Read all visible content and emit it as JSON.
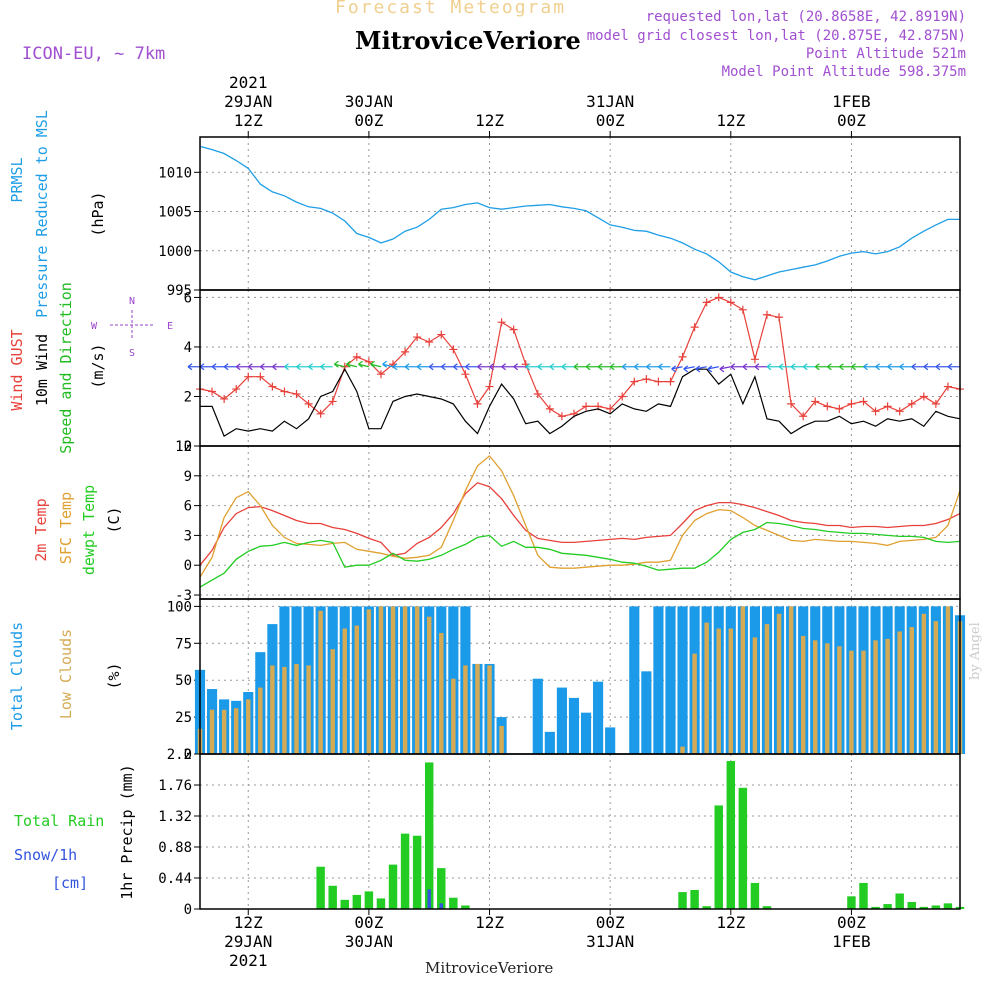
{
  "header": {
    "subtitle": "Forecast Meteogram",
    "title": "MitroviceVeriore",
    "model": "ICON-EU, ~ 7km",
    "requested": "requested lon,lat (20.8658E, 42.8919N)",
    "closest": "model grid closest lon,lat (20.875E, 42.875N)",
    "point_alt": "Point Altitude 521m",
    "model_alt": "Model Point Altitude 598.375m"
  },
  "footer": {
    "station": "MitroviceVeriore",
    "credit": "by Angel"
  },
  "colors": {
    "pressure": "#1f9ee6",
    "gust": "#e8403a",
    "wind": "#000000",
    "dir": "#22bb22",
    "temp": "#e8403a",
    "sfc": "#e0a030",
    "dewpt": "#22cc22",
    "total_clouds": "#1a9ae8",
    "low_clouds": "#d4aa55",
    "rain": "#22cc22",
    "snow": "#3355dd",
    "compass": "#9944cc"
  },
  "time_axis": {
    "start_hour": 0,
    "end_hour": 63,
    "ticks": [
      {
        "hour": 4,
        "top": [
          "2021",
          "29JAN",
          "12Z"
        ],
        "bottom": [
          "12Z",
          "29JAN",
          "2021"
        ]
      },
      {
        "hour": 14,
        "top": [
          "30JAN",
          "00Z"
        ],
        "bottom": [
          "00Z",
          "30JAN"
        ]
      },
      {
        "hour": 24,
        "top": [
          "12Z"
        ],
        "bottom": [
          "12Z"
        ]
      },
      {
        "hour": 34,
        "top": [
          "31JAN",
          "00Z"
        ],
        "bottom": [
          "00Z",
          "31JAN"
        ]
      },
      {
        "hour": 44,
        "top": [
          "12Z"
        ],
        "bottom": [
          "12Z"
        ]
      },
      {
        "hour": 54,
        "top": [
          "1FEB",
          "00Z"
        ],
        "bottom": [
          "00Z",
          "1FEB"
        ]
      }
    ]
  },
  "panels": {
    "pressure": {
      "labels": [
        "PRMSL",
        "Pressure Reduced to MSL",
        "(hPa)"
      ],
      "yticks": [
        995,
        1000,
        1005,
        1010
      ],
      "ylim": [
        995,
        1014.5
      ]
    },
    "wind": {
      "labels": [
        "Wind GUST",
        "10m Wind",
        "Speed and Direction",
        "(m/s)"
      ],
      "yticks": [
        0,
        2,
        4,
        6
      ],
      "ylim": [
        0,
        6.3
      ],
      "compass": [
        "N",
        "E",
        "S",
        "W"
      ]
    },
    "temp": {
      "labels": [
        "2m Temp",
        "SFC Temp",
        "dewpt Temp",
        "(C)"
      ],
      "yticks": [
        -3,
        0,
        3,
        6,
        9,
        12
      ],
      "ylim": [
        -3.4,
        12
      ]
    },
    "clouds": {
      "labels": [
        "Total Clouds",
        "Low Clouds",
        "(%)"
      ],
      "yticks": [
        0,
        25,
        50,
        75,
        100
      ],
      "ylim": [
        0,
        105
      ]
    },
    "precip": {
      "labels": [
        "Total Rain",
        "Snow/1h",
        "[cm]",
        "1hr Precip (mm)"
      ],
      "yticks": [
        0,
        0.44,
        0.88,
        1.32,
        1.76,
        2.2
      ],
      "ylim": [
        0,
        2.2
      ]
    }
  },
  "chart_data": [
    {
      "type": "line",
      "title": "PRMSL",
      "ylabel": "Pressure Reduced to MSL (hPa)",
      "x": [
        0,
        1,
        2,
        3,
        4,
        5,
        6,
        7,
        8,
        9,
        10,
        11,
        12,
        13,
        14,
        15,
        16,
        17,
        18,
        19,
        20,
        21,
        22,
        23,
        24,
        25,
        26,
        27,
        28,
        29,
        30,
        31,
        32,
        33,
        34,
        35,
        36,
        37,
        38,
        39,
        40,
        41,
        42,
        43,
        44,
        45,
        46,
        47,
        48,
        49,
        50,
        51,
        52,
        53,
        54,
        55,
        56,
        57,
        58,
        59,
        60,
        61,
        62,
        63
      ],
      "series": [
        {
          "name": "PRMSL",
          "values": [
            1013.3,
            1012.9,
            1012.4,
            1011.5,
            1010.5,
            1008.5,
            1007.5,
            1007.0,
            1006.2,
            1005.6,
            1005.4,
            1004.8,
            1003.8,
            1002.2,
            1001.7,
            1001.0,
            1001.5,
            1002.5,
            1003.0,
            1004.0,
            1005.3,
            1005.5,
            1005.9,
            1006.1,
            1005.5,
            1005.3,
            1005.5,
            1005.7,
            1005.8,
            1005.9,
            1005.6,
            1005.4,
            1005.1,
            1004.2,
            1003.3,
            1003.0,
            1002.6,
            1002.5,
            1002.0,
            1001.6,
            1001.0,
            1000.2,
            999.6,
            998.6,
            997.3,
            996.7,
            996.3,
            996.8,
            997.3,
            997.6,
            997.9,
            998.2,
            998.7,
            999.3,
            999.7,
            999.9,
            999.6,
            999.9,
            1000.5,
            1001.6,
            1002.5,
            1003.3,
            1004.0,
            1004.0
          ]
        }
      ],
      "ylim": [
        995,
        1014.5
      ]
    },
    {
      "type": "line",
      "title": "Wind GUST / 10m Wind Speed and Direction",
      "ylabel": "(m/s)",
      "x": [
        0,
        1,
        2,
        3,
        4,
        5,
        6,
        7,
        8,
        9,
        10,
        11,
        12,
        13,
        14,
        15,
        16,
        17,
        18,
        19,
        20,
        21,
        22,
        23,
        24,
        25,
        26,
        27,
        28,
        29,
        30,
        31,
        32,
        33,
        34,
        35,
        36,
        37,
        38,
        39,
        40,
        41,
        42,
        43,
        44,
        45,
        46,
        47,
        48,
        49,
        50,
        51,
        52,
        53,
        54,
        55,
        56,
        57,
        58,
        59,
        60,
        61,
        62,
        63
      ],
      "series": [
        {
          "name": "Wind GUST",
          "values": [
            2.3,
            2.2,
            1.9,
            2.3,
            2.8,
            2.8,
            2.4,
            2.2,
            2.1,
            1.7,
            1.3,
            1.8,
            3.2,
            3.6,
            3.4,
            2.9,
            3.3,
            3.8,
            4.4,
            4.2,
            4.5,
            3.9,
            2.9,
            1.7,
            2.4,
            5.0,
            4.7,
            3.3,
            2.1,
            1.5,
            1.2,
            1.3,
            1.6,
            1.6,
            1.5,
            2.0,
            2.6,
            2.7,
            2.6,
            2.6,
            3.6,
            4.8,
            5.8,
            6.0,
            5.8,
            5.5,
            3.5,
            5.3,
            5.2,
            1.7,
            1.2,
            1.8,
            1.6,
            1.5,
            1.7,
            1.8,
            1.4,
            1.6,
            1.4,
            1.7,
            2.0,
            1.7,
            2.4,
            2.3
          ]
        },
        {
          "name": "10m Wind",
          "values": [
            1.6,
            1.6,
            0.4,
            0.7,
            0.6,
            0.7,
            0.6,
            1.0,
            0.7,
            1.1,
            2.0,
            2.2,
            3.1,
            2.2,
            0.7,
            0.7,
            1.8,
            2.0,
            2.1,
            2.0,
            1.9,
            1.7,
            1.0,
            0.5,
            1.6,
            2.5,
            1.9,
            0.9,
            1.0,
            0.5,
            0.8,
            1.2,
            1.4,
            1.5,
            1.3,
            1.7,
            1.5,
            1.4,
            1.7,
            1.6,
            2.8,
            3.1,
            3.1,
            2.5,
            2.9,
            1.7,
            2.8,
            1.1,
            1.0,
            0.5,
            0.8,
            1.0,
            1.0,
            1.2,
            0.9,
            1.0,
            0.8,
            1.1,
            1.0,
            1.1,
            0.8,
            1.4,
            1.2,
            1.1
          ]
        }
      ],
      "ylim": [
        0,
        6.3
      ]
    },
    {
      "type": "line",
      "title": "Temperatures",
      "ylabel": "(C)",
      "x": [
        0,
        1,
        2,
        3,
        4,
        5,
        6,
        7,
        8,
        9,
        10,
        11,
        12,
        13,
        14,
        15,
        16,
        17,
        18,
        19,
        20,
        21,
        22,
        23,
        24,
        25,
        26,
        27,
        28,
        29,
        30,
        31,
        32,
        33,
        34,
        35,
        36,
        37,
        38,
        39,
        40,
        41,
        42,
        43,
        44,
        45,
        46,
        47,
        48,
        49,
        50,
        51,
        52,
        53,
        54,
        55,
        56,
        57,
        58,
        59,
        60,
        61,
        62,
        63
      ],
      "series": [
        {
          "name": "2m Temp",
          "values": [
            0.0,
            1.5,
            3.8,
            5.2,
            5.8,
            5.9,
            5.5,
            5.0,
            4.5,
            4.2,
            4.2,
            3.8,
            3.6,
            3.2,
            2.7,
            2.3,
            1.0,
            1.2,
            2.2,
            2.8,
            3.8,
            5.2,
            7.2,
            8.3,
            7.9,
            6.7,
            5.0,
            3.5,
            2.7,
            2.5,
            2.3,
            2.3,
            2.4,
            2.5,
            2.6,
            2.7,
            2.6,
            2.8,
            2.9,
            3.0,
            4.2,
            5.5,
            6.0,
            6.3,
            6.3,
            6.1,
            5.8,
            5.4,
            5.0,
            4.5,
            4.3,
            4.2,
            4.0,
            4.0,
            3.8,
            3.9,
            3.9,
            3.8,
            3.9,
            4.0,
            4.0,
            4.2,
            4.6,
            5.2
          ]
        },
        {
          "name": "SFC Temp",
          "values": [
            -1.2,
            0.8,
            4.8,
            6.8,
            7.4,
            6.0,
            4.0,
            2.8,
            2.2,
            2.1,
            2.0,
            2.2,
            2.3,
            1.6,
            1.4,
            1.2,
            0.9,
            0.7,
            0.8,
            1.0,
            1.8,
            4.5,
            7.5,
            10.0,
            11.0,
            9.5,
            7.0,
            4.0,
            1.0,
            -0.2,
            -0.3,
            -0.3,
            -0.2,
            -0.1,
            0.0,
            0.0,
            0.1,
            0.3,
            0.3,
            0.5,
            3.0,
            4.5,
            5.2,
            5.6,
            5.5,
            4.8,
            4.0,
            3.5,
            3.0,
            2.5,
            2.4,
            2.6,
            2.5,
            2.4,
            2.4,
            2.3,
            2.2,
            2.0,
            2.4,
            2.5,
            2.6,
            2.8,
            4.0,
            7.5
          ]
        },
        {
          "name": "dewpt Temp",
          "values": [
            -2.2,
            -1.5,
            -0.8,
            0.6,
            1.4,
            1.9,
            2.0,
            2.3,
            2.0,
            2.3,
            2.5,
            2.3,
            -0.2,
            0.0,
            0.0,
            0.5,
            1.2,
            0.5,
            0.4,
            0.6,
            1.0,
            1.6,
            2.1,
            2.8,
            3.0,
            1.9,
            2.4,
            1.8,
            1.8,
            1.6,
            1.2,
            1.1,
            1.0,
            0.8,
            0.6,
            0.3,
            0.2,
            -0.1,
            -0.5,
            -0.4,
            -0.3,
            -0.3,
            0.3,
            1.3,
            2.6,
            3.3,
            3.6,
            4.3,
            4.2,
            4.0,
            3.7,
            3.6,
            3.4,
            3.3,
            3.2,
            3.2,
            3.1,
            3.0,
            2.9,
            2.9,
            2.8,
            2.4,
            2.3,
            2.4
          ]
        }
      ],
      "ylim": [
        -3.4,
        12
      ]
    },
    {
      "type": "bar",
      "title": "Clouds",
      "ylabel": "(%)",
      "x": [
        0,
        1,
        2,
        3,
        4,
        5,
        6,
        7,
        8,
        9,
        10,
        11,
        12,
        13,
        14,
        15,
        16,
        17,
        18,
        19,
        20,
        21,
        22,
        23,
        24,
        25,
        26,
        27,
        28,
        29,
        30,
        31,
        32,
        33,
        34,
        35,
        36,
        37,
        38,
        39,
        40,
        41,
        42,
        43,
        44,
        45,
        46,
        47,
        48,
        49,
        50,
        51,
        52,
        53,
        54,
        55,
        56,
        57,
        58,
        59,
        60,
        61,
        62,
        63
      ],
      "series": [
        {
          "name": "Total Clouds",
          "values": [
            57,
            44,
            37,
            36,
            42,
            69,
            88,
            100,
            100,
            100,
            100,
            100,
            100,
            100,
            100,
            100,
            100,
            100,
            100,
            100,
            100,
            100,
            100,
            61,
            61,
            25,
            0,
            0,
            51,
            15,
            45,
            38,
            28,
            49,
            18,
            0,
            100,
            56,
            100,
            100,
            100,
            100,
            100,
            100,
            100,
            100,
            100,
            100,
            100,
            100,
            100,
            100,
            100,
            100,
            100,
            100,
            100,
            100,
            100,
            100,
            100,
            100,
            100,
            94
          ]
        },
        {
          "name": "Low Clouds",
          "values": [
            17,
            30,
            30,
            31,
            37,
            45,
            60,
            59,
            61,
            60,
            97,
            71,
            85,
            87,
            98,
            100,
            100,
            100,
            100,
            93,
            82,
            51,
            60,
            61,
            60,
            19,
            0,
            0,
            0,
            0,
            0,
            0,
            0,
            0,
            0,
            0,
            0,
            0,
            0,
            0,
            5,
            68,
            89,
            85,
            85,
            100,
            79,
            88,
            95,
            100,
            80,
            77,
            75,
            73,
            70,
            70,
            77,
            78,
            83,
            86,
            95,
            90,
            100,
            90
          ]
        }
      ],
      "ylim": [
        0,
        105
      ]
    },
    {
      "type": "bar",
      "title": "Precipitation",
      "ylabel": "1hr Precip (mm)",
      "x": [
        0,
        1,
        2,
        3,
        4,
        5,
        6,
        7,
        8,
        9,
        10,
        11,
        12,
        13,
        14,
        15,
        16,
        17,
        18,
        19,
        20,
        21,
        22,
        23,
        24,
        25,
        26,
        27,
        28,
        29,
        30,
        31,
        32,
        33,
        34,
        35,
        36,
        37,
        38,
        39,
        40,
        41,
        42,
        43,
        44,
        45,
        46,
        47,
        48,
        49,
        50,
        51,
        52,
        53,
        54,
        55,
        56,
        57,
        58,
        59,
        60,
        61,
        62,
        63
      ],
      "series": [
        {
          "name": "Total Rain",
          "values": [
            0,
            0,
            0,
            0,
            0,
            0,
            0,
            0,
            0,
            0,
            0.6,
            0.33,
            0.13,
            0.2,
            0.25,
            0.15,
            0.63,
            1.07,
            1.04,
            2.08,
            0.58,
            0.16,
            0.05,
            0,
            0,
            0,
            0,
            0,
            0,
            0,
            0,
            0,
            0,
            0,
            0,
            0,
            0,
            0,
            0,
            0,
            0.24,
            0.27,
            0.04,
            1.47,
            2.1,
            1.72,
            0.37,
            0.04,
            0,
            0,
            0,
            0,
            0,
            0,
            0.18,
            0.37,
            0.03,
            0.07,
            0.22,
            0.1,
            0.03,
            0.05,
            0.08,
            0.03
          ]
        },
        {
          "name": "Snow/1h",
          "values": [
            0,
            0,
            0,
            0,
            0,
            0,
            0,
            0,
            0,
            0,
            0,
            0,
            0,
            0,
            0,
            0,
            0,
            0,
            0,
            0.28,
            0.08,
            0,
            0,
            0,
            0,
            0,
            0,
            0,
            0,
            0,
            0,
            0,
            0,
            0,
            0,
            0,
            0,
            0,
            0,
            0,
            0,
            0,
            0,
            0,
            0,
            0,
            0,
            0,
            0,
            0,
            0,
            0,
            0,
            0,
            0,
            0,
            0,
            0,
            0,
            0,
            0,
            0,
            0,
            0
          ]
        }
      ],
      "ylim": [
        0,
        2.2
      ]
    }
  ]
}
